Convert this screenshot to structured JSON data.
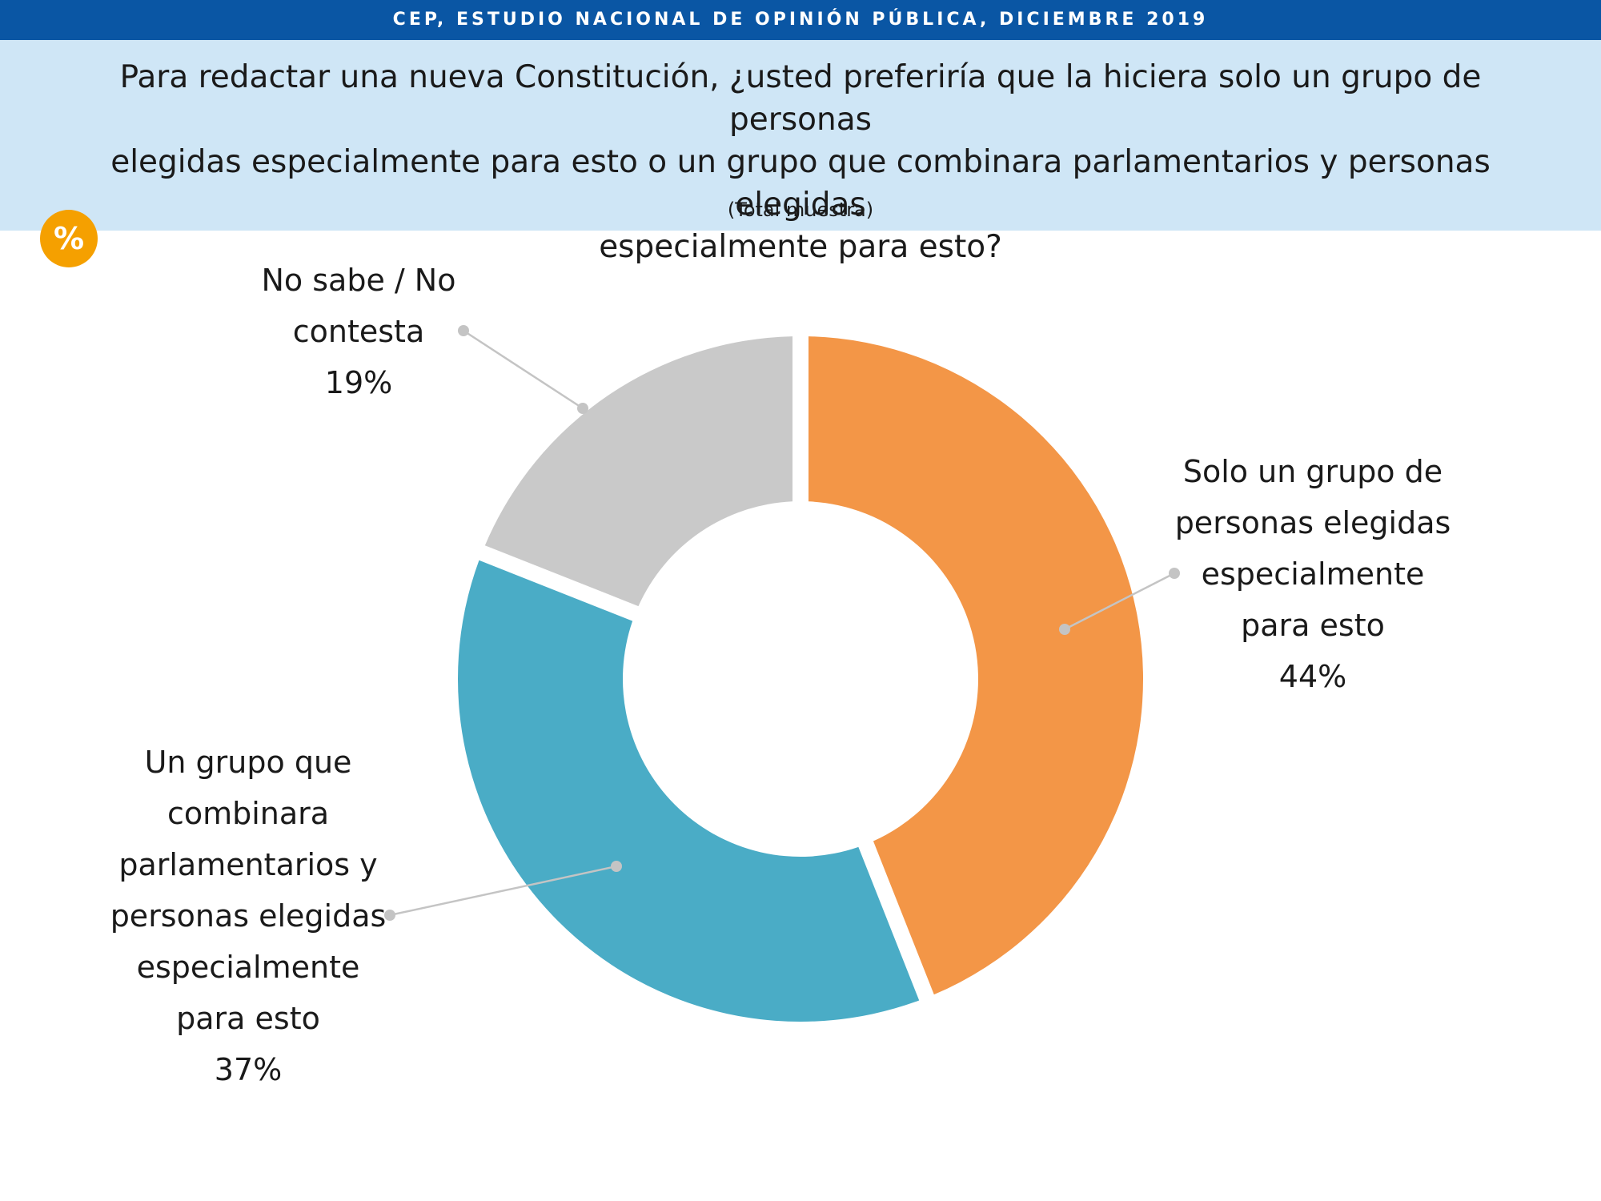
{
  "header": {
    "source": "CEP, ESTUDIO NACIONAL DE OPINIÓN PÚBLICA, DICIEMBRE 2019",
    "question_lines": [
      "Para redactar una nueva Constitución, ¿usted preferiría que la hiciera solo un grupo de personas",
      "elegidas especialmente para esto o un grupo que combinara parlamentarios y personas elegidas",
      "especialmente para esto?"
    ],
    "subtitle": "(Total muestra)",
    "badge": "%"
  },
  "chart_data": {
    "type": "pie",
    "donut": true,
    "categories": [
      "Solo un grupo de personas elegidas especialmente para esto",
      "Un grupo que combinara parlamentarios y personas elegidas especialmente para esto",
      "No sabe / No contesta"
    ],
    "values": [
      44,
      37,
      19
    ],
    "unit": "%",
    "colors": [
      "#f39647",
      "#4aacc6",
      "#c9c9c9"
    ],
    "labels": [
      {
        "lines": [
          "Solo un grupo de",
          "personas elegidas",
          "especialmente",
          "para esto"
        ],
        "value": "44%"
      },
      {
        "lines": [
          "Un grupo que",
          "combinara",
          "parlamentarios y",
          "personas elegidas",
          "especialmente",
          "para esto"
        ],
        "value": "37%"
      },
      {
        "lines": [
          "No sabe / No",
          "contesta"
        ],
        "value": "19%"
      }
    ]
  }
}
